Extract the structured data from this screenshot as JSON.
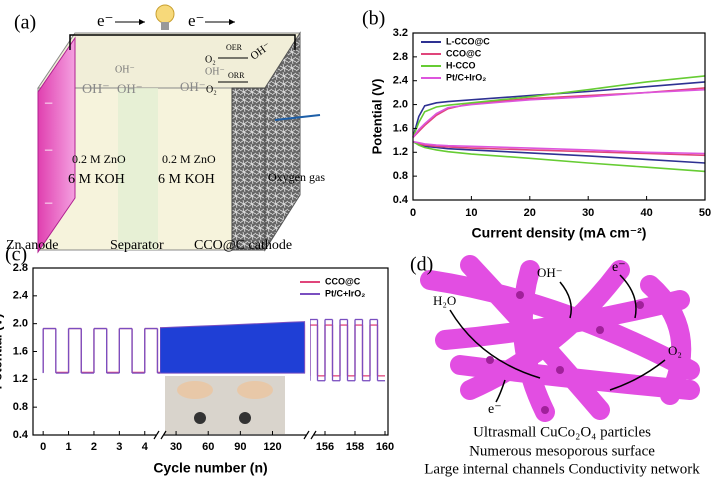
{
  "panel_a": {
    "label": "(a)",
    "electron_left": "e⁻",
    "electron_right": "e⁻",
    "hydroxide_labels": [
      "OH⁻",
      "OH⁻",
      "OH⁻",
      "OH⁻",
      "OH⁻"
    ],
    "oxygen_top": "O₂",
    "oer": "OER",
    "orr": "ORR",
    "hydroxide_cathode": "OH⁻",
    "oxygen_bottom": "O₂",
    "anode_electrolyte": [
      "0.2 M ZnO",
      "6 M KOH"
    ],
    "cathode_electrolyte": [
      "0.2 M ZnO",
      "6 M KOH"
    ],
    "oxygen_gas": "Oxygen gas",
    "component_labels": [
      "Zn anode",
      "Separator",
      "CCO@C cathode"
    ]
  },
  "chart_data": [
    {
      "type": "line",
      "label": "(b)",
      "x_label": "Current density (mA cm⁻²)",
      "y_label": "Potential (V)",
      "x": [
        0,
        1,
        2,
        4,
        6,
        10,
        20,
        30,
        40,
        50
      ],
      "xlim": [
        0,
        50
      ],
      "xticks": [
        0,
        10,
        20,
        30,
        40,
        50
      ],
      "ylim": [
        0.4,
        3.2
      ],
      "yticks": [
        0.4,
        0.8,
        1.2,
        1.6,
        {
          "value": 2,
          "label": "2.0"
        },
        2.4,
        2.8,
        3.2
      ],
      "legend": "upper left",
      "series": [
        {
          "name": "L-CCO@C",
          "color": "#2e3192",
          "charge": [
            1.45,
            1.8,
            1.98,
            2.03,
            2.05,
            2.08,
            2.15,
            2.22,
            2.3,
            2.38
          ],
          "discharge": [
            1.38,
            1.33,
            1.3,
            1.28,
            1.26,
            1.24,
            1.19,
            1.14,
            1.08,
            1.02
          ]
        },
        {
          "name": "CCO@C",
          "color": "#e0457b",
          "charge": [
            1.45,
            1.55,
            1.65,
            1.82,
            1.93,
            2.02,
            2.1,
            2.15,
            2.2,
            2.28
          ],
          "discharge": [
            1.38,
            1.34,
            1.32,
            1.3,
            1.29,
            1.27,
            1.24,
            1.21,
            1.18,
            1.15
          ]
        },
        {
          "name": "H-CCO",
          "color": "#66cc33",
          "charge": [
            1.45,
            1.7,
            1.88,
            1.96,
            1.99,
            2.03,
            2.13,
            2.25,
            2.38,
            2.48
          ],
          "discharge": [
            1.38,
            1.32,
            1.28,
            1.24,
            1.21,
            1.17,
            1.1,
            1.02,
            0.95,
            0.88
          ]
        },
        {
          "name": "Pt/C+IrO₂",
          "color": "#dd55dd",
          "charge": [
            1.45,
            1.58,
            1.68,
            1.85,
            1.95,
            2.0,
            2.08,
            2.13,
            2.2,
            2.25
          ],
          "discharge": [
            1.38,
            1.36,
            1.34,
            1.32,
            1.31,
            1.3,
            1.27,
            1.24,
            1.2,
            1.18
          ]
        }
      ]
    },
    {
      "type": "cycling",
      "label": "(c)",
      "x_label": "Cycle number (n)",
      "y_label": "Potential (V)",
      "ylim": [
        0.4,
        2.8
      ],
      "yticks": [
        0.4,
        0.8,
        1.2,
        1.6,
        {
          "value": 2,
          "label": "2.0"
        },
        2.4,
        2.8
      ],
      "segments": [
        {
          "xlim": [
            -0.4,
            4.6
          ],
          "xticks": [
            0,
            1,
            2,
            3,
            4
          ]
        },
        {
          "xlim": [
            15,
            155
          ],
          "xticks": [
            30,
            60,
            90,
            120
          ]
        },
        {
          "xlim": [
            155,
            160.2
          ],
          "xticks": [
            156,
            158,
            160
          ]
        }
      ],
      "legend": "upper right",
      "series": [
        {
          "name": "CCO@C",
          "color": "#e0457b",
          "x": [
            0,
            1,
            2,
            3,
            4,
            15,
            45,
            75,
            105,
            135,
            150,
            155,
            156,
            157,
            158,
            159
          ],
          "charge": [
            1.93,
            1.93,
            1.93,
            1.93,
            1.93,
            1.94,
            1.95,
            1.96,
            1.97,
            1.98,
            1.98,
            1.98,
            1.98,
            1.98,
            1.98,
            1.98
          ],
          "discharge": [
            1.3,
            1.3,
            1.3,
            1.3,
            1.3,
            1.3,
            1.3,
            1.3,
            1.3,
            1.3,
            1.3,
            1.25,
            1.25,
            1.25,
            1.25,
            1.25
          ]
        },
        {
          "name": "Pt/C+IrO₂",
          "color": "#7a4fc0",
          "x": [
            0,
            1,
            2,
            3,
            4,
            15,
            45,
            75,
            105,
            135,
            150,
            155,
            156,
            157,
            158,
            159
          ],
          "charge": [
            1.93,
            1.93,
            1.93,
            1.93,
            1.93,
            1.94,
            1.96,
            1.98,
            2.0,
            2.02,
            2.03,
            2.06,
            2.06,
            2.06,
            2.06,
            2.06
          ],
          "discharge": [
            1.29,
            1.29,
            1.29,
            1.29,
            1.29,
            1.29,
            1.29,
            1.29,
            1.29,
            1.29,
            1.29,
            1.18,
            1.18,
            1.18,
            1.18,
            1.18
          ]
        }
      ]
    }
  ],
  "panel_d": {
    "label": "(d)",
    "hydroxide": "OH⁻",
    "electron_in": "e⁻",
    "water": "H₂O",
    "oxygen": "O₂",
    "electron_out": "e⁻",
    "captions": [
      "Ultrasmall CuCo₂O₄ particles",
      "Numerous mesoporous surface",
      "Large internal channels  Conductivity network"
    ]
  }
}
